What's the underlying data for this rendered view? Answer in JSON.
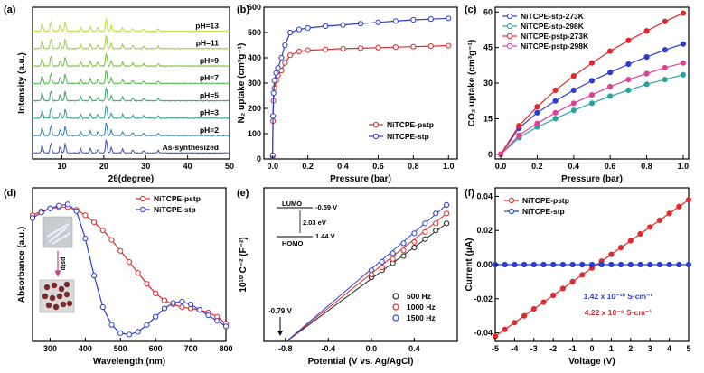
{
  "panels": {
    "a": {
      "letter": "(a)",
      "xlabel": "2θ(degree)",
      "ylabel": "Intensity (a.u.)"
    },
    "b": {
      "letter": "(b)",
      "xlabel": "Pressure (bar)",
      "ylabel": "N₂ uptake (cm³g⁻¹)"
    },
    "c": {
      "letter": "(c)",
      "xlabel": "Pressure (bar)",
      "ylabel": "CO₂ uptake (cm³g⁻¹)"
    },
    "d": {
      "letter": "(d)",
      "xlabel": "Wavelength (nm)",
      "ylabel": "Absorbance (a.u.)",
      "arrow_label": "pstp"
    },
    "e": {
      "letter": "(e)",
      "xlabel": "Potential (V vs. Ag/AgCl)",
      "ylabel": "10¹⁰ C⁻² (F⁻²)",
      "lumo_label": "LUMO",
      "homo_label": "HOMO",
      "lumo_value": "-0.59 V",
      "gap_value": "2.03 eV",
      "homo_value": "1.44 V",
      "flatband_label": "-0.79 V"
    },
    "f": {
      "letter": "(f)",
      "xlabel": "Voltage (V)",
      "ylabel": "Current (μA)",
      "cond_stp": "1.42 x 10⁻¹⁰ S·cm⁻¹",
      "cond_pstp": "4.22 x 10⁻⁸ S·cm⁻¹"
    }
  },
  "colors": {
    "red": "#e0292b",
    "blue": "#2b3bd4",
    "pink": "#e0409a",
    "teal": "#2aa3a0",
    "dark": "#222222"
  },
  "chart_data": [
    {
      "type": "line",
      "panel": "a",
      "title": "",
      "xlabel": "2θ(degree)",
      "ylabel": "Intensity (a.u.)",
      "xlim": [
        3,
        50
      ],
      "xticks": [
        10,
        20,
        30,
        40,
        50
      ],
      "series": [
        {
          "name": "As-synthesized",
          "color": "#3a4fb5"
        },
        {
          "name": "pH=2",
          "color": "#2f7bb3"
        },
        {
          "name": "pH=3",
          "color": "#2e9a9a"
        },
        {
          "name": "pH=5",
          "color": "#33a36a"
        },
        {
          "name": "pH=7",
          "color": "#4fb34a"
        },
        {
          "name": "pH=9",
          "color": "#74bf3f"
        },
        {
          "name": "pH=11",
          "color": "#9acb3a"
        },
        {
          "name": "pH=13",
          "color": "#c2d83a"
        }
      ],
      "peaks_2theta": [
        5.3,
        7.4,
        9.6,
        10.8,
        14.5,
        16.8,
        18.6,
        20.6,
        21.8,
        24.5,
        26.9,
        29.5,
        33.0
      ]
    },
    {
      "type": "scatter",
      "panel": "b",
      "title": "",
      "xlabel": "Pressure (bar)",
      "ylabel": "N₂ uptake (cm³g⁻¹)",
      "xlim": [
        -0.05,
        1.05
      ],
      "ylim": [
        0,
        600
      ],
      "xticks": [
        0.0,
        0.2,
        0.4,
        0.6,
        0.8,
        1.0
      ],
      "yticks": [
        0,
        100,
        200,
        300,
        400,
        500,
        600
      ],
      "legend": "bottom-right",
      "x": [
        0.0,
        0.002,
        0.005,
        0.01,
        0.02,
        0.03,
        0.05,
        0.07,
        0.1,
        0.15,
        0.2,
        0.3,
        0.4,
        0.5,
        0.6,
        0.7,
        0.8,
        0.9,
        1.0
      ],
      "series": [
        {
          "name": "NiTCPE-pstp",
          "color": "#e0292b",
          "values": [
            10,
            150,
            230,
            280,
            310,
            330,
            350,
            380,
            410,
            425,
            430,
            433,
            436,
            438,
            440,
            442,
            444,
            446,
            448
          ]
        },
        {
          "name": "NiTCPE-stp",
          "color": "#2b3bd4",
          "values": [
            15,
            170,
            260,
            310,
            340,
            360,
            400,
            450,
            500,
            512,
            518,
            525,
            530,
            535,
            540,
            545,
            550,
            553,
            556
          ]
        }
      ]
    },
    {
      "type": "line",
      "panel": "c",
      "title": "",
      "xlabel": "Pressure (bar)",
      "ylabel": "CO₂ uptake (cm³g⁻¹)",
      "xlim": [
        -0.03,
        1.03
      ],
      "ylim": [
        -2,
        62
      ],
      "xticks": [
        0.0,
        0.2,
        0.4,
        0.6,
        0.8,
        1.0
      ],
      "yticks": [
        0,
        15,
        30,
        45,
        60
      ],
      "legend": "top-left",
      "x": [
        0.0,
        0.1,
        0.2,
        0.3,
        0.4,
        0.5,
        0.6,
        0.7,
        0.8,
        0.9,
        1.0
      ],
      "series": [
        {
          "name": "NiTCPE-stp-273K",
          "color": "#2b3bd4",
          "values": [
            0,
            11,
            17.5,
            22.5,
            27,
            31,
            34.5,
            38,
            41,
            44,
            46.5
          ]
        },
        {
          "name": "NiTCPE-stp-298K",
          "color": "#2aa3a0",
          "values": [
            0,
            7,
            11.5,
            15,
            18.5,
            21.5,
            24.5,
            27,
            29.5,
            31.5,
            33.5
          ]
        },
        {
          "name": "NiTCPE-pstp-273K",
          "color": "#e0292b",
          "values": [
            0,
            12,
            20,
            27,
            33,
            38.5,
            43.5,
            48,
            52,
            56,
            59.5
          ]
        },
        {
          "name": "NiTCPE-pstp-298K",
          "color": "#e0409a",
          "values": [
            0,
            8,
            13,
            17.5,
            21.5,
            25,
            28.5,
            31.5,
            34,
            36.5,
            38.5
          ]
        }
      ]
    },
    {
      "type": "line",
      "panel": "d",
      "title": "",
      "xlabel": "Wavelength (nm)",
      "ylabel": "Absorbance (a.u.)",
      "xlim": [
        250,
        800
      ],
      "xticks": [
        300,
        400,
        500,
        600,
        700,
        800
      ],
      "legend": "top-right",
      "x": [
        250,
        275,
        300,
        325,
        350,
        375,
        400,
        425,
        450,
        475,
        500,
        525,
        550,
        575,
        600,
        625,
        650,
        675,
        700,
        725,
        750,
        775,
        800
      ],
      "series": [
        {
          "name": "NiTCPE-pstp",
          "color": "#e0292b",
          "values": [
            0.92,
            0.95,
            0.97,
            0.98,
            0.98,
            0.96,
            0.92,
            0.87,
            0.81,
            0.74,
            0.66,
            0.58,
            0.5,
            0.42,
            0.35,
            0.3,
            0.27,
            0.25,
            0.24,
            0.23,
            0.21,
            0.18,
            0.13
          ]
        },
        {
          "name": "NiTCPE-stp",
          "color": "#2b3bd4",
          "values": [
            0.9,
            0.94,
            0.97,
            0.99,
            1.0,
            0.95,
            0.75,
            0.48,
            0.25,
            0.12,
            0.06,
            0.05,
            0.07,
            0.12,
            0.18,
            0.24,
            0.28,
            0.29,
            0.27,
            0.23,
            0.19,
            0.15,
            0.11
          ]
        }
      ]
    },
    {
      "type": "scatter",
      "panel": "e",
      "title": "",
      "xlabel": "Potential (V vs. Ag/AgCl)",
      "ylabel": "10¹⁰ C⁻² (F⁻²)",
      "xlim": [
        -1.0,
        0.8
      ],
      "xticks": [
        -0.8,
        -0.4,
        0.0,
        0.4
      ],
      "legend": "bottom-right",
      "x": [
        0.0,
        0.1,
        0.2,
        0.3,
        0.4,
        0.5,
        0.6,
        0.7
      ],
      "series": [
        {
          "name": "500 Hz",
          "color": "#222222",
          "values": [
            2.25,
            2.5,
            2.75,
            3.0,
            3.3,
            3.6,
            3.9,
            4.15
          ]
        },
        {
          "name": "1000 Hz",
          "color": "#e0292b",
          "values": [
            2.35,
            2.6,
            2.9,
            3.2,
            3.5,
            3.85,
            4.15,
            4.5
          ]
        },
        {
          "name": "1500 Hz",
          "color": "#2b3bd4",
          "values": [
            2.5,
            2.8,
            3.1,
            3.45,
            3.8,
            4.15,
            4.5,
            4.8
          ]
        }
      ],
      "flatband_potential": -0.79
    },
    {
      "type": "line",
      "panel": "f",
      "title": "",
      "xlabel": "Voltage (V)",
      "ylabel": "Current (μA)",
      "xlim": [
        -5,
        5
      ],
      "ylim": [
        -0.045,
        0.045
      ],
      "xticks": [
        -5,
        -4,
        -3,
        -2,
        -1,
        0,
        1,
        2,
        3,
        4,
        5
      ],
      "yticks": [
        -0.04,
        -0.02,
        0.0,
        0.02,
        0.04
      ],
      "legend": "top-left",
      "x": [
        -5,
        -4.5,
        -4,
        -3.5,
        -3,
        -2.5,
        -2,
        -1.5,
        -1,
        -0.5,
        0,
        0.5,
        1,
        1.5,
        2,
        2.5,
        3,
        3.5,
        4,
        4.5,
        5
      ],
      "series": [
        {
          "name": "NiTCPE-pstp",
          "color": "#e0292b",
          "values": [
            -0.042,
            -0.038,
            -0.034,
            -0.03,
            -0.026,
            -0.022,
            -0.018,
            -0.014,
            -0.01,
            -0.006,
            -0.002,
            0.002,
            0.006,
            0.01,
            0.014,
            0.018,
            0.022,
            0.026,
            0.03,
            0.034,
            0.038
          ]
        },
        {
          "name": "NiTCPE-stp",
          "color": "#2b3bd4",
          "values": [
            0,
            0,
            0,
            0,
            0,
            0,
            0,
            0,
            0,
            0,
            0,
            0,
            0,
            0,
            0,
            0,
            0,
            0,
            0,
            0,
            0
          ]
        }
      ]
    }
  ]
}
